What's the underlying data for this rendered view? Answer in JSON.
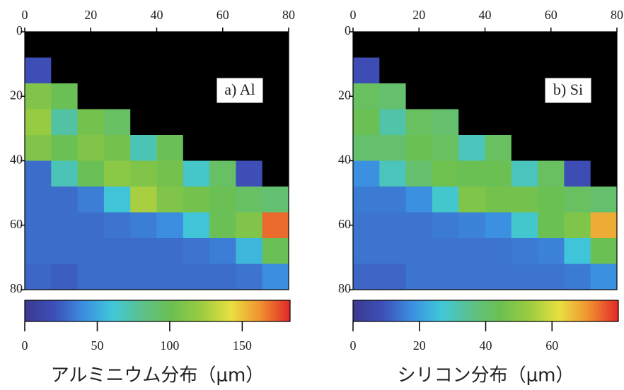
{
  "chart_data": [
    {
      "type": "heatmap",
      "label": "a) Al",
      "caption": "アルミニウム分布（μm）",
      "xlim": [
        0,
        80
      ],
      "ylim": [
        0,
        80
      ],
      "y_inverted": true,
      "xticks": [
        0,
        20,
        40,
        60,
        80
      ],
      "yticks": [
        0,
        20,
        40,
        60,
        80
      ],
      "x": [
        4,
        12,
        20,
        28,
        36,
        44,
        52,
        60,
        68,
        76
      ],
      "y": [
        4,
        12,
        20,
        28,
        36,
        44,
        52,
        60,
        68,
        76
      ],
      "z": [
        [
          0,
          0,
          0,
          0,
          0,
          0,
          0,
          0,
          0,
          0
        ],
        [
          20,
          0,
          0,
          0,
          0,
          0,
          0,
          0,
          0,
          0
        ],
        [
          110,
          100,
          0,
          0,
          0,
          0,
          0,
          0,
          0,
          0
        ],
        [
          120,
          75,
          105,
          95,
          0,
          0,
          0,
          0,
          0,
          0
        ],
        [
          110,
          100,
          110,
          105,
          70,
          100,
          0,
          0,
          0,
          0
        ],
        [
          30,
          70,
          100,
          115,
          110,
          105,
          65,
          95,
          20,
          0
        ],
        [
          30,
          30,
          35,
          60,
          125,
          110,
          105,
          100,
          95,
          90
        ],
        [
          30,
          30,
          30,
          32,
          35,
          40,
          60,
          100,
          110,
          170
        ],
        [
          30,
          30,
          30,
          30,
          30,
          30,
          32,
          35,
          55,
          100
        ],
        [
          28,
          25,
          30,
          30,
          30,
          30,
          30,
          30,
          32,
          40
        ]
      ],
      "clim": [
        0,
        183
      ],
      "cticks": [
        0,
        50,
        100,
        150
      ],
      "colormap": [
        "#3b3a8f",
        "#3d4fb8",
        "#3b8fe0",
        "#40c8d8",
        "#5cc08a",
        "#6cc050",
        "#9ccc40",
        "#e8e040",
        "#f09030",
        "#e02828"
      ],
      "under_color": "#000000"
    },
    {
      "type": "heatmap",
      "label": "b) Si",
      "caption": "シリコン分布（μm）",
      "xlim": [
        0,
        80
      ],
      "ylim": [
        0,
        80
      ],
      "y_inverted": true,
      "xticks": [
        0,
        20,
        40,
        60,
        80
      ],
      "yticks": [
        0,
        20,
        40,
        60,
        80
      ],
      "x": [
        4,
        12,
        20,
        28,
        36,
        44,
        52,
        60,
        68,
        76
      ],
      "y": [
        4,
        12,
        20,
        28,
        36,
        44,
        52,
        60,
        68,
        76
      ],
      "z": [
        [
          0,
          0,
          0,
          0,
          0,
          0,
          0,
          0,
          0,
          0
        ],
        [
          8,
          0,
          0,
          0,
          0,
          0,
          0,
          0,
          0,
          0
        ],
        [
          42,
          40,
          0,
          0,
          0,
          0,
          0,
          0,
          0,
          0
        ],
        [
          44,
          32,
          42,
          40,
          0,
          0,
          0,
          0,
          0,
          0
        ],
        [
          40,
          40,
          44,
          42,
          30,
          42,
          0,
          0,
          0,
          0
        ],
        [
          18,
          30,
          40,
          45,
          44,
          44,
          30,
          42,
          8,
          0
        ],
        [
          15,
          15,
          18,
          28,
          48,
          46,
          46,
          44,
          42,
          40
        ],
        [
          14,
          14,
          14,
          15,
          16,
          18,
          28,
          44,
          48,
          68
        ],
        [
          14,
          14,
          14,
          14,
          14,
          14,
          15,
          16,
          26,
          44
        ],
        [
          12,
          12,
          14,
          14,
          14,
          14,
          14,
          14,
          15,
          18
        ]
      ],
      "clim": [
        0,
        80
      ],
      "cticks": [
        0,
        20,
        40,
        60
      ],
      "colormap": [
        "#3b3a8f",
        "#3d4fb8",
        "#3b8fe0",
        "#40c8d8",
        "#5cc08a",
        "#6cc050",
        "#9ccc40",
        "#e8e040",
        "#f09030",
        "#e02828"
      ],
      "under_color": "#000000"
    }
  ]
}
